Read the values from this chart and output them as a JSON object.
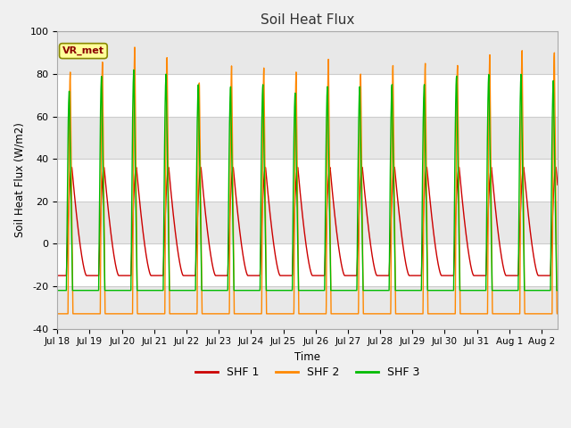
{
  "title": "Soil Heat Flux",
  "ylabel": "Soil Heat Flux (W/m2)",
  "xlabel": "Time",
  "ylim": [
    -40,
    100
  ],
  "fig_bg_color": "#f0f0f0",
  "plot_bg_color": "#ffffff",
  "shf1_color": "#cc0000",
  "shf2_color": "#ff8800",
  "shf3_color": "#00bb00",
  "legend_label1": "SHF 1",
  "legend_label2": "SHF 2",
  "legend_label3": "SHF 3",
  "annotation_text": "VR_met",
  "annotation_color": "#8B0000",
  "annotation_bg": "#ffff99",
  "n_days": 15.5,
  "start_day": 18,
  "points_per_day": 240
}
